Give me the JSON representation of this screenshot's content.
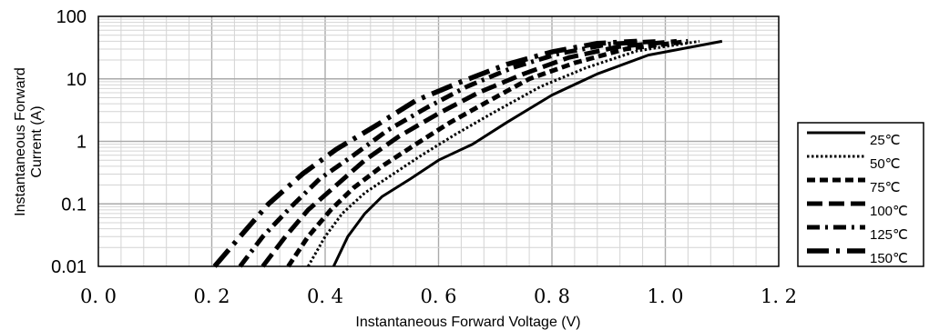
{
  "chart_data": {
    "type": "line",
    "title": "",
    "xlabel": "Instantaneous Forward Voltage (V)",
    "ylabel_lines": [
      "Instantaneous Forward",
      "Current (A)"
    ],
    "xlim": [
      0,
      1.2
    ],
    "ylim": [
      0.01,
      100
    ],
    "yscale": "log",
    "grid": true,
    "legend_position": "right",
    "x_ticks": [
      {
        "value": 0.0,
        "label": "0. 0"
      },
      {
        "value": 0.2,
        "label": "0. 2"
      },
      {
        "value": 0.4,
        "label": "0. 4"
      },
      {
        "value": 0.6,
        "label": "0. 6"
      },
      {
        "value": 0.8,
        "label": "0. 8"
      },
      {
        "value": 1.0,
        "label": "1. 0"
      },
      {
        "value": 1.2,
        "label": "1. 2"
      }
    ],
    "y_ticks": [
      {
        "value": 0.01,
        "label": "0.01"
      },
      {
        "value": 0.1,
        "label": "0.1"
      },
      {
        "value": 1,
        "label": "1"
      },
      {
        "value": 10,
        "label": "10"
      },
      {
        "value": 100,
        "label": "100"
      }
    ],
    "series": [
      {
        "name": "25℃",
        "dash": "solid",
        "x": [
          0.415,
          0.44,
          0.47,
          0.5,
          0.55,
          0.6,
          0.66,
          0.72,
          0.8,
          0.88,
          0.97,
          1.1
        ],
        "y": [
          0.01,
          0.03,
          0.07,
          0.13,
          0.25,
          0.5,
          0.9,
          2.0,
          5.5,
          12,
          24,
          40
        ]
      },
      {
        "name": "50℃",
        "dash": "dot",
        "x": [
          0.37,
          0.4,
          0.43,
          0.47,
          0.52,
          0.57,
          0.63,
          0.7,
          0.78,
          0.86,
          0.95,
          1.06
        ],
        "y": [
          0.01,
          0.03,
          0.07,
          0.15,
          0.3,
          0.6,
          1.3,
          3.0,
          7.5,
          15,
          28,
          40
        ]
      },
      {
        "name": "75℃",
        "dash": "short-dash",
        "x": [
          0.335,
          0.37,
          0.41,
          0.45,
          0.5,
          0.56,
          0.62,
          0.69,
          0.76,
          0.84,
          0.93,
          1.04
        ],
        "y": [
          0.01,
          0.03,
          0.08,
          0.18,
          0.4,
          0.9,
          2.0,
          4.5,
          10,
          18,
          30,
          40
        ]
      },
      {
        "name": "100℃",
        "dash": "long-dash",
        "x": [
          0.29,
          0.33,
          0.37,
          0.42,
          0.47,
          0.53,
          0.6,
          0.67,
          0.75,
          0.83,
          0.92,
          1.02
        ],
        "y": [
          0.01,
          0.03,
          0.08,
          0.2,
          0.5,
          1.2,
          2.8,
          6.0,
          12,
          22,
          33,
          40
        ]
      },
      {
        "name": "125℃",
        "dash": "dash-dot",
        "x": [
          0.25,
          0.29,
          0.34,
          0.39,
          0.45,
          0.51,
          0.58,
          0.65,
          0.73,
          0.81,
          0.9,
          0.99
        ],
        "y": [
          0.01,
          0.03,
          0.09,
          0.25,
          0.6,
          1.5,
          3.5,
          7.5,
          15,
          25,
          36,
          40
        ]
      },
      {
        "name": "150℃",
        "dash": "long-dash-dot",
        "x": [
          0.205,
          0.25,
          0.3,
          0.36,
          0.42,
          0.49,
          0.56,
          0.64,
          0.72,
          0.8,
          0.88,
          0.95
        ],
        "y": [
          0.01,
          0.03,
          0.1,
          0.3,
          0.75,
          1.8,
          4.5,
          9.0,
          17,
          27,
          37,
          40
        ]
      }
    ]
  }
}
